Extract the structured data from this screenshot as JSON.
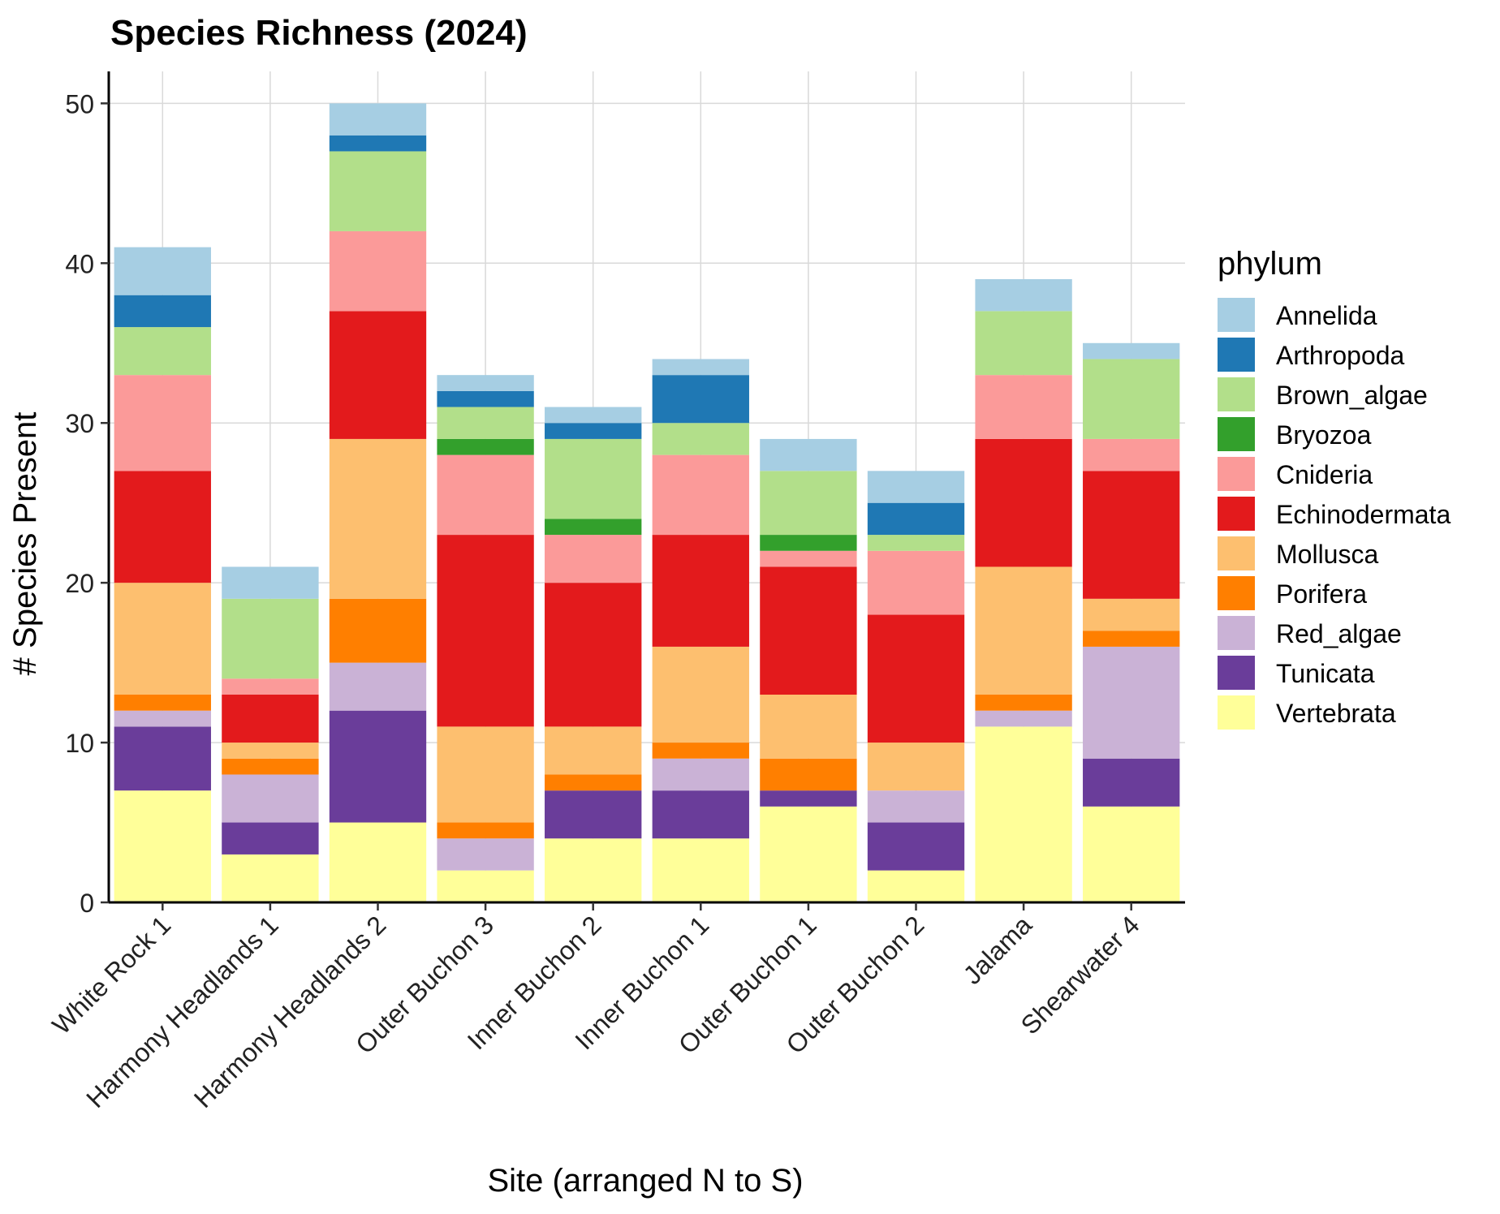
{
  "chart_data": {
    "type": "bar",
    "stacked": true,
    "title": "Species Richness (2024)",
    "xlabel": "Site (arranged N to S)",
    "ylabel": "# Species Present",
    "ylim": [
      0,
      52
    ],
    "yticks": [
      0,
      10,
      20,
      30,
      40,
      50
    ],
    "grid": true,
    "legend_title": "phylum",
    "legend_position": "right",
    "categories": [
      "White Rock 1",
      "Harmony Headlands 1",
      "Harmony Headlands 2",
      "Outer Buchon 3",
      "Inner Buchon 2",
      "Inner Buchon 1",
      "Outer Buchon 1",
      "Outer Buchon 2",
      "Jalama",
      "Shearwater 4"
    ],
    "series": [
      {
        "name": "Annelida",
        "color": "#A6CEE3",
        "values": [
          3,
          2,
          2,
          1,
          1,
          1,
          2,
          2,
          2,
          1
        ]
      },
      {
        "name": "Arthropoda",
        "color": "#1F78B4",
        "values": [
          2,
          0,
          1,
          1,
          1,
          3,
          0,
          2,
          0,
          0
        ]
      },
      {
        "name": "Brown_algae",
        "color": "#B2DF8A",
        "values": [
          3,
          5,
          5,
          2,
          5,
          2,
          4,
          1,
          4,
          5
        ]
      },
      {
        "name": "Bryozoa",
        "color": "#33A02C",
        "values": [
          0,
          0,
          0,
          1,
          1,
          0,
          1,
          0,
          0,
          0
        ]
      },
      {
        "name": "Cnideria",
        "color": "#FB9A99",
        "values": [
          6,
          1,
          5,
          5,
          3,
          5,
          1,
          4,
          4,
          2
        ]
      },
      {
        "name": "Echinodermata",
        "color": "#E31A1C",
        "values": [
          7,
          3,
          8,
          12,
          9,
          7,
          8,
          8,
          8,
          8
        ]
      },
      {
        "name": "Mollusca",
        "color": "#FDBF6F",
        "values": [
          7,
          1,
          10,
          6,
          3,
          6,
          4,
          3,
          8,
          2
        ]
      },
      {
        "name": "Porifera",
        "color": "#FF7F00",
        "values": [
          1,
          1,
          4,
          1,
          1,
          1,
          2,
          0,
          1,
          1
        ]
      },
      {
        "name": "Red_algae",
        "color": "#CAB2D6",
        "values": [
          1,
          3,
          3,
          2,
          0,
          2,
          0,
          2,
          1,
          7
        ]
      },
      {
        "name": "Tunicata",
        "color": "#6A3D9A",
        "values": [
          4,
          2,
          7,
          0,
          3,
          3,
          1,
          3,
          0,
          3
        ]
      },
      {
        "name": "Vertebrata",
        "color": "#FFFF99",
        "values": [
          7,
          3,
          5,
          2,
          4,
          4,
          6,
          2,
          11,
          6
        ]
      }
    ]
  }
}
